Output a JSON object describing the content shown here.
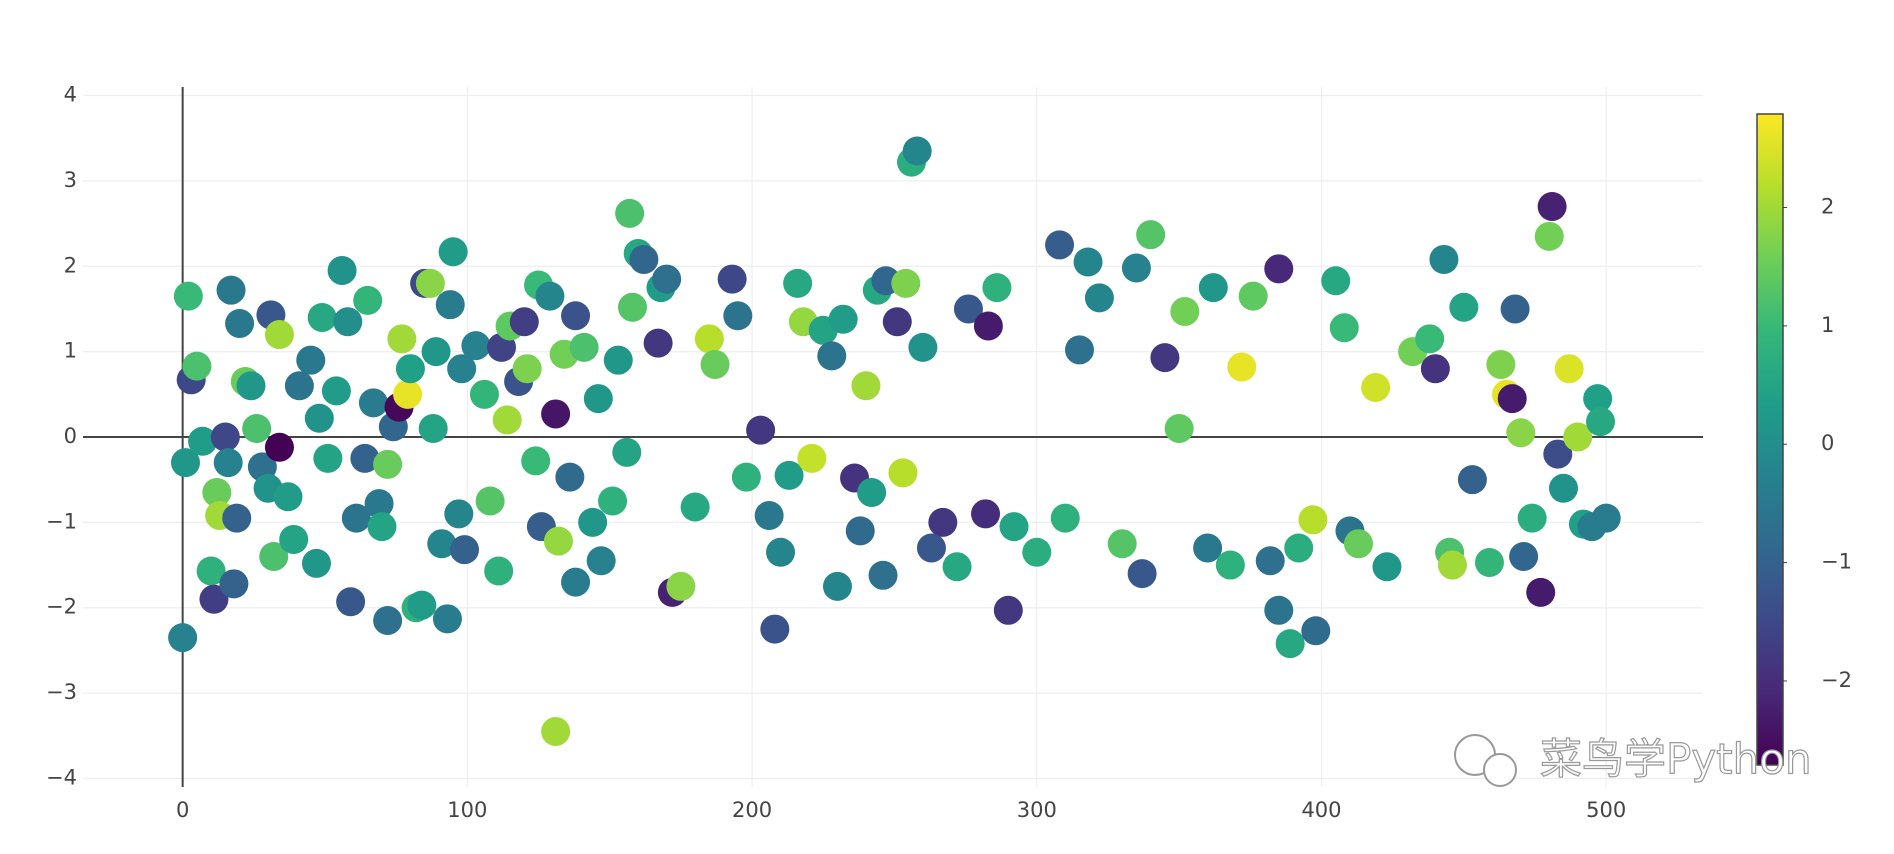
{
  "chart_data": {
    "type": "scatter",
    "x": [
      0,
      1,
      2,
      3,
      5,
      7,
      10,
      11,
      12,
      13,
      15,
      16,
      17,
      18,
      19,
      20,
      22,
      24,
      26,
      28,
      30,
      31,
      32,
      34,
      34,
      37,
      39,
      41,
      45,
      48,
      47,
      49,
      51,
      54,
      56,
      58,
      59,
      61,
      64,
      65,
      67,
      69,
      70,
      72,
      72,
      74,
      76,
      77,
      79,
      80,
      82,
      84,
      85,
      87,
      88,
      89,
      91,
      93,
      94,
      95,
      97,
      98,
      99,
      103,
      106,
      108,
      111,
      112,
      114,
      115,
      118,
      120,
      121,
      124,
      125,
      126,
      129,
      131,
      131,
      132,
      134,
      136,
      138,
      138,
      141,
      144,
      146,
      147,
      151,
      153,
      156,
      157,
      158,
      160,
      162,
      167,
      168,
      170,
      172,
      175,
      180,
      185,
      187,
      193,
      195,
      198,
      203,
      206,
      208,
      210,
      213,
      216,
      218,
      221,
      225,
      228,
      230,
      232,
      236,
      238,
      240,
      242,
      244,
      246,
      247,
      251,
      253,
      254,
      256,
      258,
      260,
      263,
      267,
      272,
      276,
      282,
      283,
      286,
      290,
      292,
      300,
      308,
      310,
      315,
      318,
      322,
      330,
      335,
      337,
      340,
      345,
      350,
      352,
      360,
      362,
      368,
      372,
      376,
      382,
      385,
      385,
      389,
      392,
      397,
      398,
      405,
      408,
      410,
      413,
      419,
      423,
      432,
      438,
      440,
      443,
      445,
      446,
      450,
      453,
      459,
      463,
      465,
      467,
      468,
      470,
      471,
      474,
      477,
      480,
      481,
      483,
      485,
      487,
      490,
      492,
      495,
      497,
      498,
      500
    ],
    "values": [
      -2.35,
      -0.3,
      1.65,
      0.67,
      0.83,
      -0.05,
      -1.57,
      -1.9,
      -0.65,
      -0.92,
      0,
      -0.3,
      1.72,
      -1.72,
      -0.95,
      1.33,
      0.65,
      0.6,
      0.1,
      -0.35,
      -0.6,
      1.43,
      -1.4,
      1.2,
      -0.12,
      -0.7,
      -1.2,
      0.6,
      0.9,
      0.22,
      -1.48,
      1.4,
      -0.25,
      0.54,
      1.95,
      1.35,
      -1.93,
      -0.95,
      -0.25,
      1.6,
      0.4,
      -0.78,
      -1.05,
      -2.15,
      -0.32,
      0.12,
      0.35,
      1.15,
      0.5,
      0.8,
      -2.0,
      -1.97,
      1.8,
      1.8,
      0.1,
      1.0,
      -1.25,
      -2.13,
      1.55,
      2.17,
      -0.9,
      0.8,
      -1.32,
      1.07,
      0.5,
      -0.75,
      -1.57,
      1.05,
      0.2,
      1.3,
      0.65,
      1.35,
      0.8,
      -0.28,
      1.78,
      -1.05,
      1.65,
      0.27,
      -3.45,
      -1.22,
      0.97,
      -0.47,
      -1.7,
      1.42,
      1.05,
      -1.0,
      0.45,
      -1.45,
      -0.75,
      0.9,
      -0.18,
      2.62,
      1.52,
      2.15,
      2.08,
      1.1,
      1.75,
      1.85,
      -1.82,
      -1.75,
      -0.82,
      1.15,
      0.85,
      1.85,
      1.42,
      -0.47,
      0.08,
      -0.92,
      -2.25,
      -1.35,
      -0.45,
      1.8,
      1.35,
      -0.25,
      1.25,
      0.95,
      -1.75,
      1.38,
      -0.48,
      -1.1,
      0.6,
      -0.65,
      1.72,
      -1.62,
      1.83,
      1.35,
      -0.42,
      1.8,
      3.22,
      3.35,
      1.05,
      -1.3,
      -1.0,
      -1.52,
      1.5,
      -0.9,
      1.3,
      1.75,
      -2.03,
      -1.05,
      -1.35,
      2.25,
      -0.95,
      1.02,
      2.05,
      1.63,
      -1.25,
      1.98,
      -1.6,
      2.37,
      0.93,
      0.1,
      1.47,
      -1.3,
      1.75,
      -1.5,
      0.82,
      1.65,
      -1.45,
      -2.03,
      1.97,
      -2.42,
      -1.3,
      -0.97,
      -2.27,
      1.83,
      1.28,
      -1.1,
      -1.25,
      0.58,
      -1.52,
      1.0,
      1.15,
      0.8,
      2.08,
      -1.35,
      -1.5,
      1.52,
      -0.5,
      -1.47,
      0.85,
      0.5,
      0.45,
      1.5,
      0.05,
      -1.4,
      -0.95,
      -1.82,
      2.35,
      2.7,
      -0.2,
      -0.6,
      0.8,
      0.0,
      -1.02,
      -1.05,
      0.45,
      0.18,
      -0.95
    ],
    "color_values": [
      -0.3,
      0.2,
      1.0,
      -1.5,
      1.2,
      0.3,
      0.8,
      -1.7,
      1.5,
      2.0,
      -1.5,
      -0.3,
      -0.5,
      -1.0,
      -1.0,
      -0.5,
      1.5,
      0.2,
      1.2,
      -0.7,
      0.1,
      -1.2,
      1.2,
      2.0,
      -2.7,
      0.3,
      0.5,
      -0.6,
      -0.5,
      0.1,
      0.2,
      0.6,
      0.5,
      0.3,
      0.1,
      0,
      -1.2,
      -0.6,
      -1.0,
      0.9,
      -0.4,
      -0.5,
      0.5,
      -0.7,
      1.5,
      -0.9,
      -2.6,
      2.0,
      2.6,
      0.4,
      0.8,
      0.3,
      -1.5,
      1.8,
      0.5,
      0.2,
      -0.2,
      -0.4,
      -0.4,
      0.3,
      -0.2,
      -0.3,
      -1.0,
      -0.3,
      0.9,
      1.3,
      0.8,
      -1.6,
      2.0,
      1.4,
      -1.3,
      -1.7,
      1.7,
      1.0,
      1.0,
      -1.1,
      -0.2,
      -2.4,
      2.0,
      1.9,
      1.6,
      -0.8,
      -0.4,
      -1.3,
      1.2,
      0.2,
      0.2,
      -0.3,
      0.8,
      0.2,
      0.5,
      1.2,
      1.3,
      0.6,
      -0.9,
      -1.8,
      0.3,
      -0.7,
      -2.2,
      1.8,
      0.6,
      2.2,
      1.5,
      -1.5,
      -0.6,
      0.8,
      -1.8,
      -0.5,
      -1.3,
      -0.2,
      0.3,
      0.6,
      1.9,
      2.3,
      0.5,
      -0.6,
      -0.2,
      0.3,
      -1.9,
      -0.8,
      2.0,
      0.3,
      0.6,
      -0.7,
      -0.9,
      -1.8,
      2.2,
      1.7,
      0.7,
      -0.2,
      0.1,
      -1.2,
      -1.8,
      0.6,
      -1.2,
      -2.0,
      -2.3,
      0.8,
      -1.8,
      0.5,
      0.7,
      -1.1,
      0.8,
      -0.7,
      -0.2,
      -0.2,
      1.3,
      -0.3,
      -1.2,
      1.3,
      -1.8,
      1.4,
      1.6,
      -0.5,
      0.2,
      0.8,
      2.6,
      1.4,
      -0.7,
      -0.6,
      -2.1,
      0.6,
      0.7,
      2.2,
      -0.8,
      0.6,
      1.0,
      -0.6,
      1.5,
      2.4,
      0.2,
      1.6,
      1.0,
      -1.9,
      -0.2,
      1.2,
      2.0,
      0.5,
      -1.0,
      0.9,
      1.7,
      2.6,
      -2.3,
      -1.0,
      1.8,
      -0.9,
      0.7,
      -2.3,
      1.6,
      -2.2,
      -1.4,
      0.1,
      2.5,
      2.0,
      0.4,
      -0.4,
      0.4,
      0.6,
      -0.4
    ],
    "colorscale": [
      "#440154",
      "#482878",
      "#3e4989",
      "#31688e",
      "#26828e",
      "#1f9e89",
      "#35b779",
      "#6ece58",
      "#b5de2b",
      "#fde725"
    ],
    "colorbar": {
      "lim": [
        -2.71,
        2.79
      ],
      "ticks": [
        {
          "value": -2,
          "label": "−2"
        },
        {
          "value": -1,
          "label": "−1"
        },
        0,
        1,
        2
      ]
    },
    "xlim": [
      -35,
      534
    ],
    "ylim": [
      -4.1,
      4.1
    ],
    "xticks": [
      0,
      100,
      200,
      300,
      400,
      500
    ],
    "yticks": [
      {
        "value": -4,
        "label": "−4"
      },
      {
        "value": -3,
        "label": "−3"
      },
      {
        "value": -2,
        "label": "−2"
      },
      {
        "value": -1,
        "label": "−1"
      },
      0,
      1,
      2,
      3,
      4
    ],
    "grid": true,
    "watermark": "菜鸟学Python"
  }
}
